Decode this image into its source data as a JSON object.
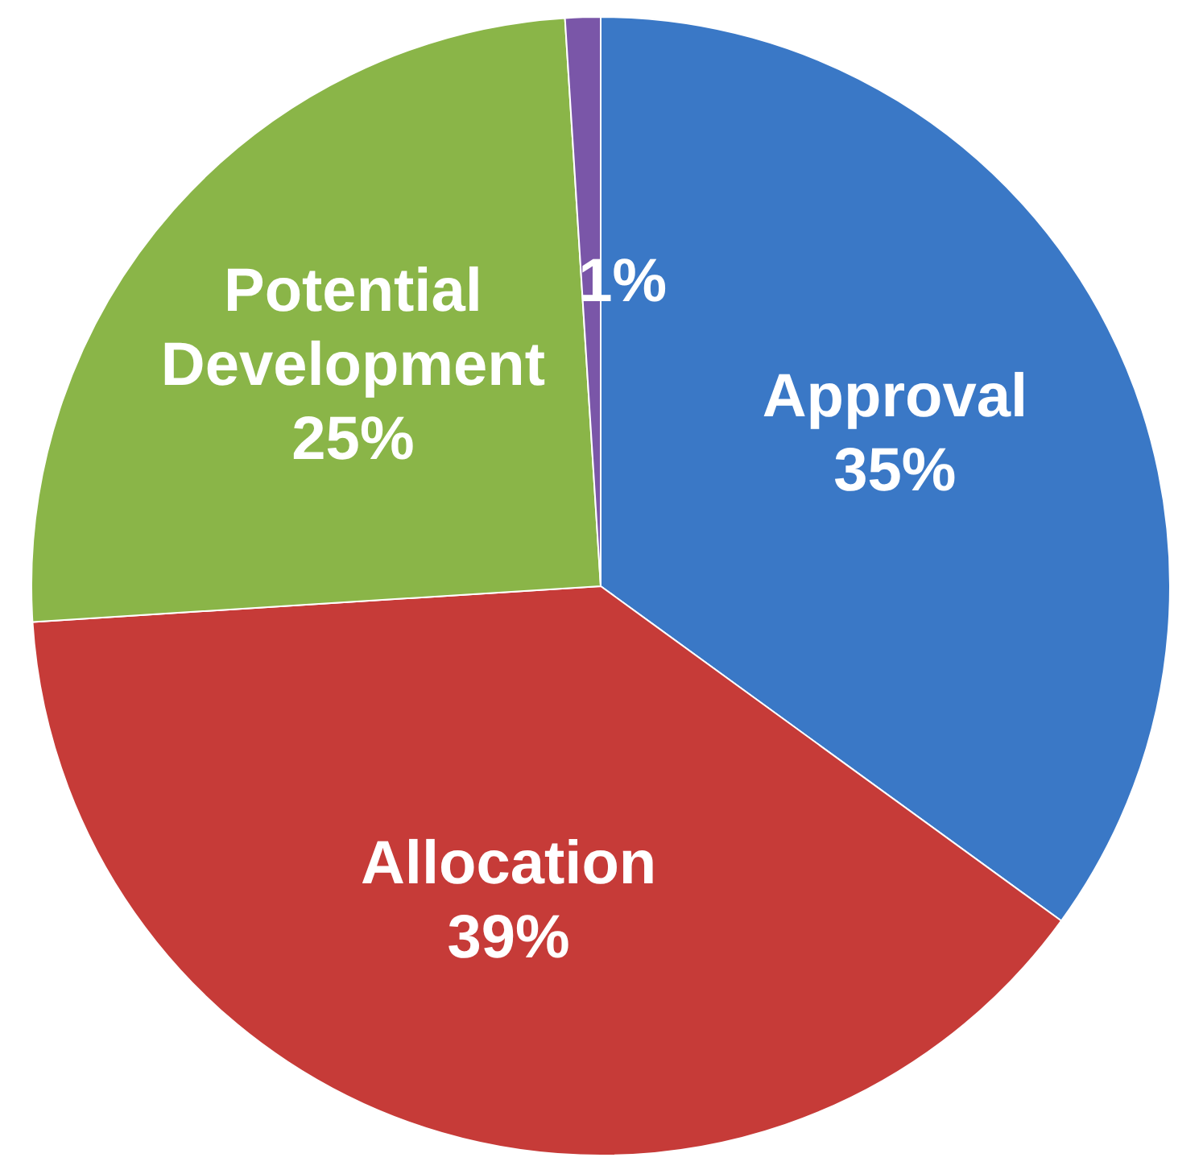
{
  "chart_data": {
    "type": "pie",
    "categories": [
      "Approval",
      "Allocation",
      "Potential Development",
      null
    ],
    "values": [
      35,
      39,
      25,
      1
    ],
    "colors": [
      "#3a78c6",
      "#c63b38",
      "#8ab548",
      "#7a56a8"
    ],
    "value_labels": [
      "35%",
      "39%",
      "25%",
      "1%"
    ],
    "legend": false
  }
}
